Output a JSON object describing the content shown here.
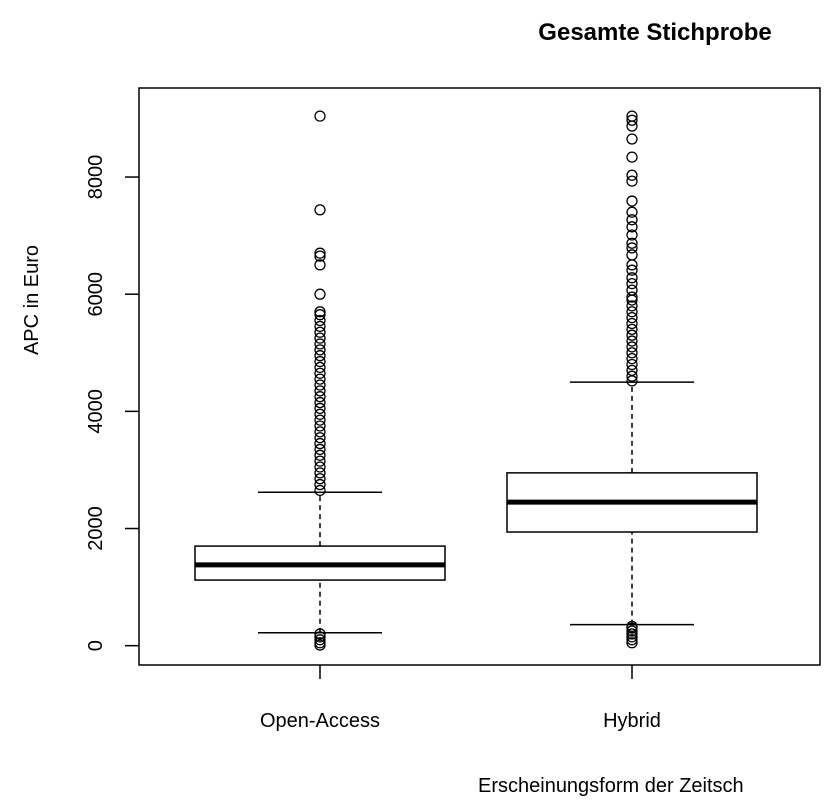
{
  "chart_data": {
    "type": "box",
    "title": "Gesamte Stichprobe",
    "xlabel": "Erscheinungsform der Zeitsch",
    "ylabel": "APC in Euro",
    "categories": [
      "Open-Access",
      "Hybrid"
    ],
    "stats": [
      {
        "whislo": 220,
        "q1": 1120,
        "med": 1380,
        "q3": 1700,
        "whishi": 2620,
        "outliers": [
          10,
          50,
          100,
          150,
          200,
          2650,
          2750,
          2850,
          2950,
          3050,
          3150,
          3250,
          3350,
          3450,
          3550,
          3650,
          3750,
          3850,
          3950,
          4050,
          4150,
          4250,
          4350,
          4450,
          4550,
          4650,
          4750,
          4850,
          4950,
          5050,
          5150,
          5250,
          5350,
          5450,
          5550,
          5650,
          5700,
          6000,
          6500,
          6650,
          6700,
          7440,
          9040
        ]
      },
      {
        "whislo": 360,
        "q1": 1940,
        "med": 2450,
        "q3": 2950,
        "whishi": 4500,
        "outliers": [
          50,
          100,
          150,
          200,
          250,
          300,
          330,
          4520,
          4600,
          4700,
          4800,
          4900,
          5000,
          5100,
          5200,
          5300,
          5400,
          5500,
          5600,
          5700,
          5800,
          5900,
          5950,
          6070,
          6180,
          6280,
          6410,
          6500,
          6670,
          6790,
          6870,
          7010,
          7150,
          7270,
          7400,
          7590,
          7930,
          8030,
          8340,
          8650,
          8870,
          8970,
          9040
        ]
      }
    ],
    "ylim": [
      -330,
      9520
    ],
    "yticks": [
      0,
      2000,
      4000,
      6000,
      8000
    ]
  }
}
